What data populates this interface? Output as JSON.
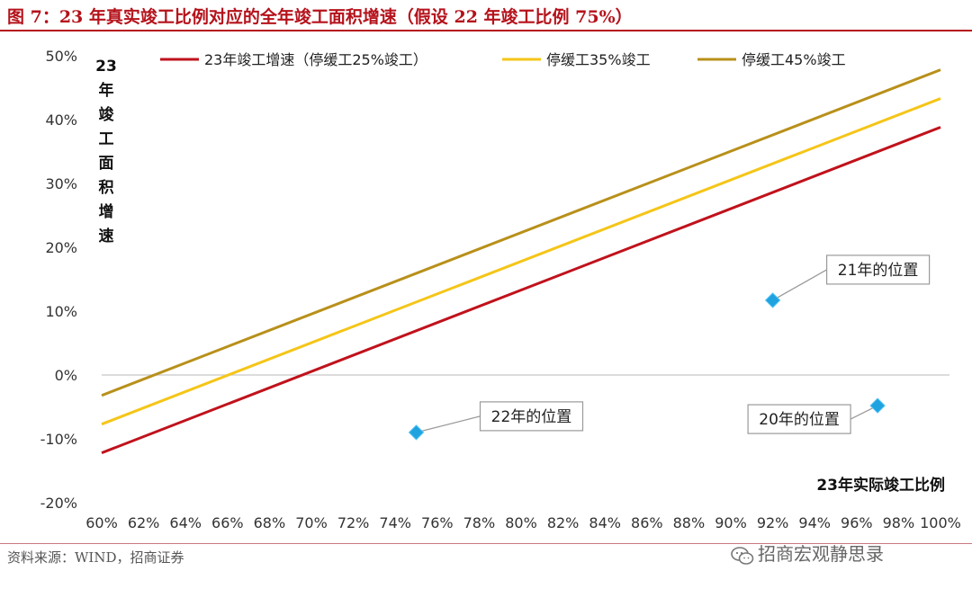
{
  "header": {
    "title": "图 7：23 年真实竣工比例对应的全年竣工面积增速（假设 22 年竣工比例 75%）"
  },
  "footer": {
    "source": "资料来源：WIND，招商证券",
    "watermark": "招商宏观静思录",
    "watermark_icon": "wechat-icon"
  },
  "chart_data": {
    "type": "line",
    "title": "23 年真实竣工比例对应的全年竣工面积增速（假设 22 年竣工比例 75%）",
    "xlabel": "23年实际竣工比例",
    "ylabel": "23年竣工面积增速",
    "ylabel_chars": [
      "23",
      "年",
      "竣",
      "工",
      "面",
      "积",
      "增",
      "速"
    ],
    "xlim": [
      0.6,
      1.0
    ],
    "ylim": [
      -0.2,
      0.5
    ],
    "x_ticks": [
      "60%",
      "62%",
      "64%",
      "66%",
      "68%",
      "70%",
      "72%",
      "74%",
      "76%",
      "78%",
      "80%",
      "82%",
      "84%",
      "86%",
      "88%",
      "90%",
      "92%",
      "94%",
      "96%",
      "98%",
      "100%"
    ],
    "y_ticks": [
      "50%",
      "40%",
      "30%",
      "20%",
      "10%",
      "0%",
      "-10%",
      "-20%"
    ],
    "series": [
      {
        "name": "23年竣工增速（停缓工25%竣工）",
        "color": "#c0121c",
        "x": [
          0.6,
          1.0
        ],
        "y": [
          -0.122,
          0.388
        ]
      },
      {
        "name": "停缓工35%竣工",
        "color": "#f5c518",
        "x": [
          0.6,
          1.0
        ],
        "y": [
          -0.077,
          0.433
        ]
      },
      {
        "name": "停缓工45%竣工",
        "color": "#b8901a",
        "x": [
          0.6,
          1.0
        ],
        "y": [
          -0.032,
          0.478
        ]
      }
    ],
    "points": [
      {
        "label": "21年的位置",
        "x": 0.92,
        "y": 0.117,
        "color": "#1fa3e0"
      },
      {
        "label": "22年的位置",
        "x": 0.75,
        "y": -0.09,
        "color": "#1fa3e0"
      },
      {
        "label": "20年的位置",
        "x": 0.97,
        "y": -0.048,
        "color": "#1fa3e0"
      }
    ],
    "grid": false,
    "legend_position": "top"
  }
}
